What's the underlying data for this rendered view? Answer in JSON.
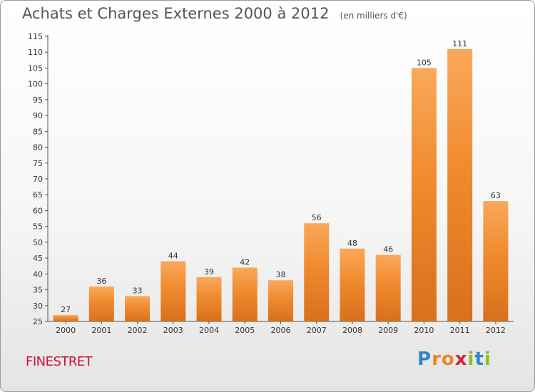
{
  "chart_data": {
    "type": "bar",
    "title": "Achats et Charges Externes 2000 à 2012",
    "subtitle": "(en milliers d'€)",
    "categories": [
      "2000",
      "2001",
      "2002",
      "2003",
      "2004",
      "2005",
      "2006",
      "2007",
      "2008",
      "2009",
      "2010",
      "2011",
      "2012"
    ],
    "values": [
      27,
      36,
      33,
      44,
      39,
      42,
      38,
      56,
      48,
      46,
      105,
      111,
      63
    ],
    "ylim": [
      25,
      115
    ],
    "yticks": [
      25,
      30,
      35,
      40,
      45,
      50,
      55,
      60,
      65,
      70,
      75,
      80,
      85,
      90,
      95,
      100,
      105,
      110,
      115
    ],
    "grid": false,
    "bar_color": "#f08a2e",
    "bar_color_light": "#f9a95a",
    "bar_color_dark": "#d8701c"
  },
  "footer": {
    "commune": "FINESTRET",
    "commune_color": "#c8143c",
    "logo_letters": [
      {
        "ch": "P",
        "color": "#2e86c8"
      },
      {
        "ch": "r",
        "color": "#e8882a"
      },
      {
        "ch": "o",
        "color": "#e8882a"
      },
      {
        "ch": "x",
        "color": "#d0263a"
      },
      {
        "ch": "i",
        "color": "#8cbf26"
      },
      {
        "ch": "t",
        "color": "#2e86c8"
      },
      {
        "ch": "i",
        "color": "#8cbf26"
      }
    ]
  }
}
